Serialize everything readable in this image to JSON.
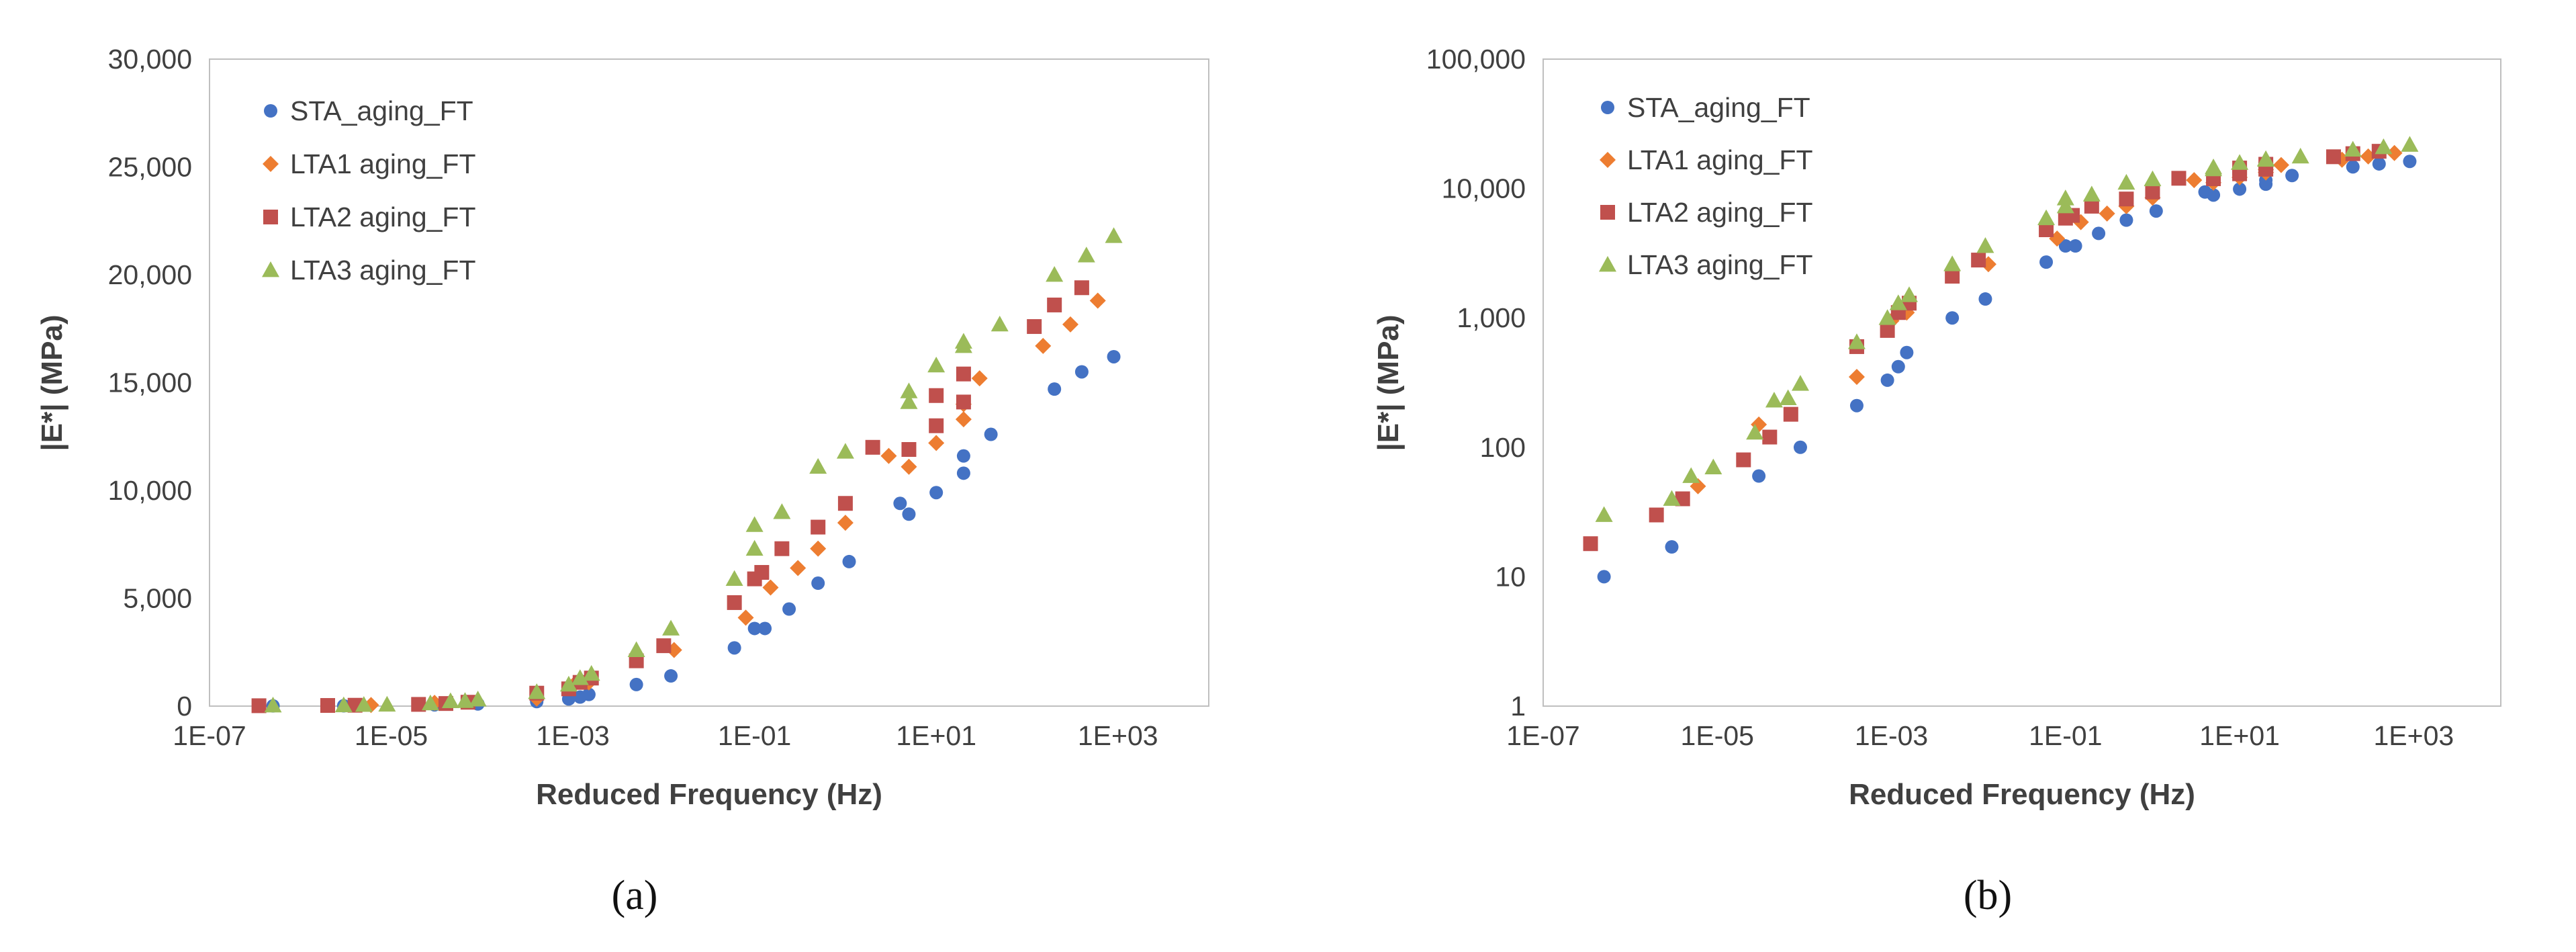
{
  "chart_data": [
    {
      "type": "scatter",
      "panel_label": "(a)",
      "xlabel": "Reduced Frequency (Hz)",
      "ylabel": "|E*| (MPa)",
      "xscale": "log",
      "yscale": "linear",
      "xlim": [
        1e-07,
        10000
      ],
      "ylim": [
        0,
        30000
      ],
      "xticks": [
        "1E-07",
        "1E-05",
        "1E-03",
        "1E-01",
        "1E+01",
        "1E+03"
      ],
      "yticks": [
        "0",
        "5,000",
        "10,000",
        "15,000",
        "20,000",
        "25,000",
        "30,000"
      ],
      "legend_position": "top-left",
      "grid": false,
      "series": [
        {
          "name": "STA_aging_FT",
          "marker": "circle",
          "color": "#4472C4",
          "x": [
            5e-07,
            3e-06,
            3e-05,
            9e-05,
            0.0004,
            0.0009,
            0.0012,
            0.0015,
            0.005,
            0.012,
            0.06,
            0.1,
            0.13,
            0.24,
            0.5,
            1.1,
            4,
            5,
            10,
            20,
            20,
            40,
            200,
            400,
            900
          ],
          "y": [
            10,
            17,
            60,
            100,
            210,
            330,
            420,
            540,
            1000,
            1400,
            2700,
            3600,
            3600,
            4500,
            5700,
            6700,
            9400,
            8900,
            9900,
            10800,
            11600,
            12600,
            14700,
            15500,
            16200
          ]
        },
        {
          "name": "LTA1 aging_FT",
          "marker": "diamond",
          "color": "#ED7D31",
          "x": [
            6e-06,
            3e-05,
            0.0004,
            0.001,
            0.0015,
            0.013,
            0.08,
            0.15,
            0.3,
            0.5,
            1,
            3,
            5,
            10,
            20,
            20,
            30,
            150,
            300,
            600
          ],
          "y": [
            50,
            150,
            350,
            950,
            1100,
            2600,
            4100,
            5500,
            6400,
            7300,
            8500,
            11600,
            11100,
            12200,
            13300,
            14000,
            15200,
            16700,
            17700,
            18800
          ]
        },
        {
          "name": "LTA2 aging_FT",
          "marker": "square",
          "color": "#C0504D",
          "x": [
            3.5e-07,
            2e-06,
            4e-06,
            2e-05,
            4e-05,
            7e-05,
            0.0004,
            0.0009,
            0.0012,
            0.0016,
            0.005,
            0.01,
            0.06,
            0.1,
            0.12,
            0.2,
            0.5,
            1,
            2,
            5,
            10,
            10,
            20,
            20,
            120,
            200,
            400
          ],
          "y": [
            18,
            30,
            40,
            80,
            120,
            180,
            600,
            800,
            1100,
            1300,
            2100,
            2800,
            4800,
            5900,
            6200,
            7300,
            8300,
            9400,
            12000,
            11900,
            13000,
            14400,
            14100,
            15400,
            17600,
            18600,
            19400
          ]
        },
        {
          "name": "LTA3 aging_FT",
          "marker": "triangle",
          "color": "#9BBB59",
          "x": [
            5e-07,
            3e-06,
            5e-06,
            9e-06,
            2.7e-05,
            4.5e-05,
            6.5e-05,
            9e-05,
            0.0004,
            0.0009,
            0.0012,
            0.0016,
            0.005,
            0.012,
            0.06,
            0.1,
            0.1,
            0.2,
            0.5,
            1,
            5,
            5,
            10,
            20,
            20,
            50,
            200,
            450,
            900
          ],
          "y": [
            30,
            40,
            60,
            70,
            130,
            230,
            240,
            310,
            650,
            1000,
            1300,
            1500,
            2600,
            3600,
            5900,
            7300,
            8400,
            9000,
            11100,
            11800,
            14100,
            14600,
            15800,
            16700,
            16900,
            17700,
            20000,
            20900,
            21800
          ]
        }
      ]
    },
    {
      "type": "scatter",
      "panel_label": "(b)",
      "xlabel": "Reduced Frequency (Hz)",
      "ylabel": "|E*| (MPa)",
      "xscale": "log",
      "yscale": "log",
      "xlim": [
        1e-07,
        10000
      ],
      "ylim": [
        1,
        100000
      ],
      "xticks": [
        "1E-07",
        "1E-05",
        "1E-03",
        "1E-01",
        "1E+01",
        "1E+03"
      ],
      "yticks": [
        "1",
        "10",
        "100",
        "1,000",
        "10,000",
        "100,000"
      ],
      "legend_position": "top-left",
      "grid": false,
      "series_ref": "same data as panel (a)"
    }
  ]
}
